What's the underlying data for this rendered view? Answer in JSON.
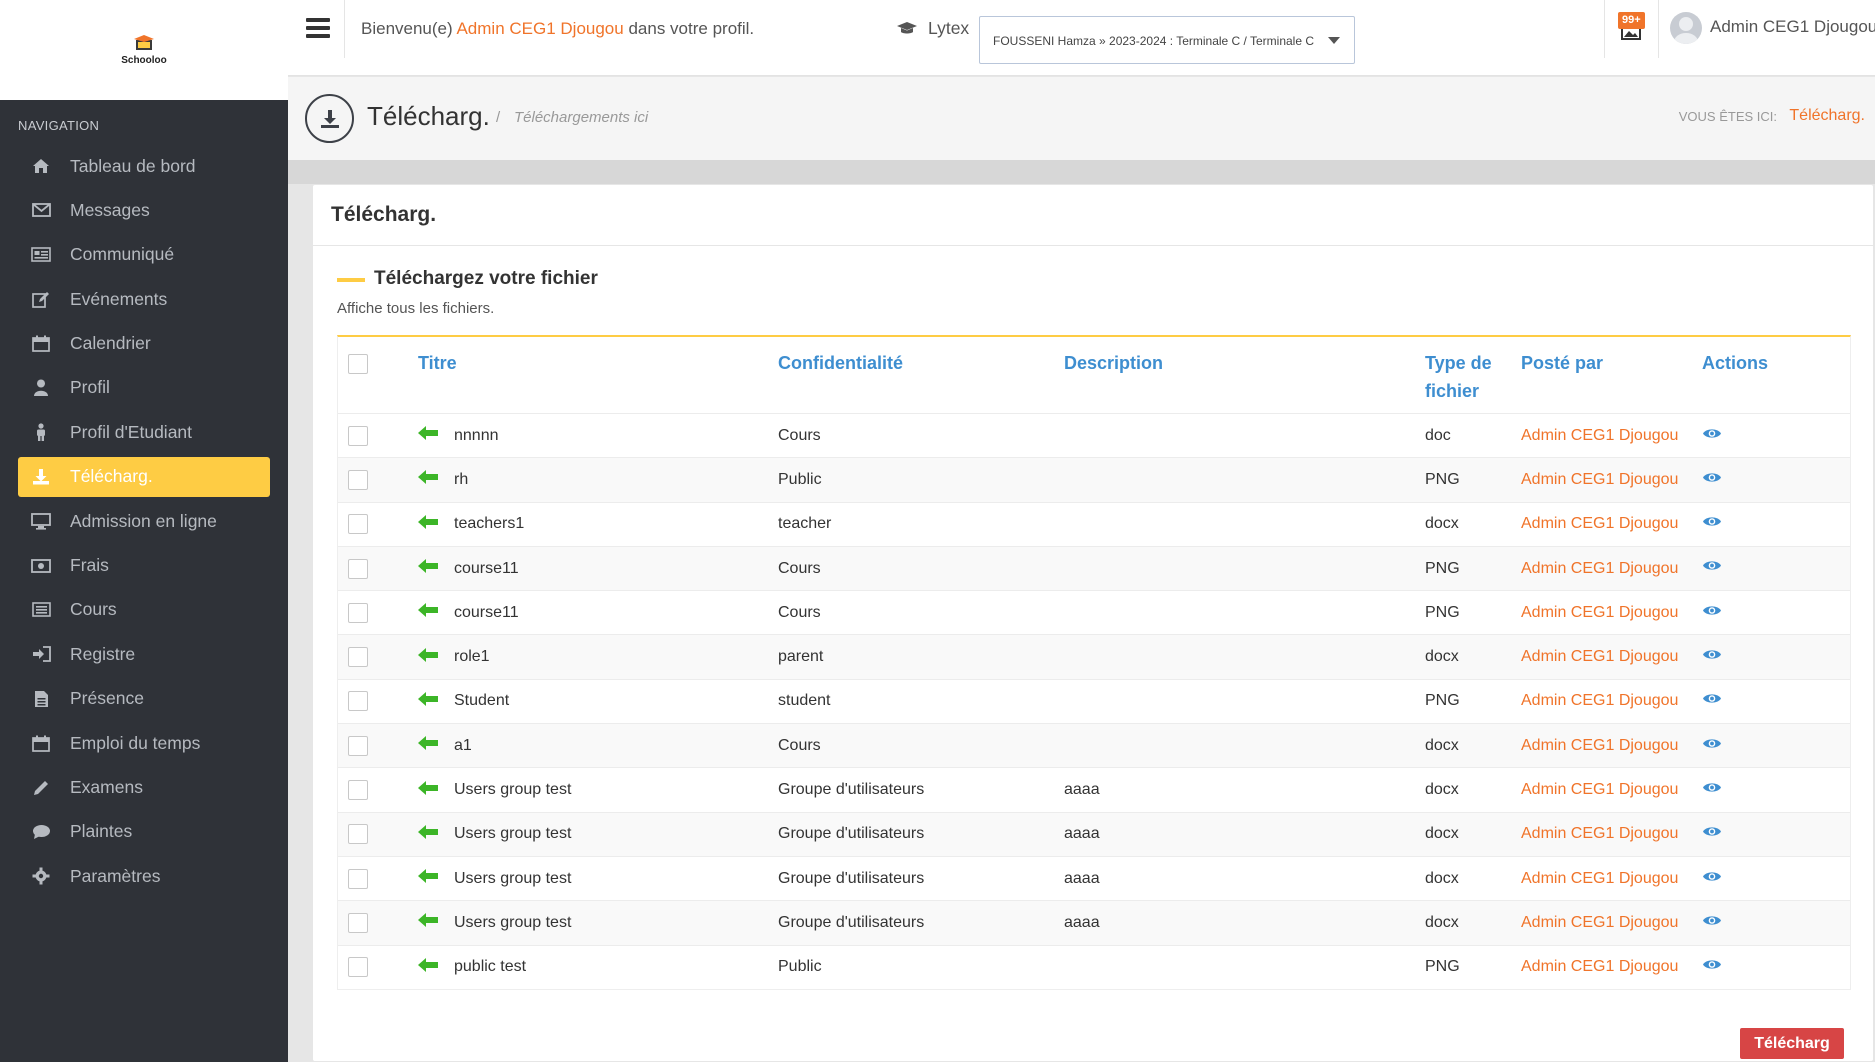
{
  "brand": {
    "name": "Schooloo"
  },
  "sidebar": {
    "title": "NAVIGATION",
    "items": [
      {
        "label": "Tableau de bord",
        "icon": "home-icon"
      },
      {
        "label": "Messages",
        "icon": "envelope-icon"
      },
      {
        "label": "Communiqué",
        "icon": "newspaper-icon"
      },
      {
        "label": "Evénements",
        "icon": "edit-icon"
      },
      {
        "label": "Calendrier",
        "icon": "calendar-icon"
      },
      {
        "label": "Profil",
        "icon": "user-icon"
      },
      {
        "label": "Profil d'Etudiant",
        "icon": "student-icon"
      },
      {
        "label": "Télécharg.",
        "icon": "download-icon",
        "active": true
      },
      {
        "label": "Admission en ligne",
        "icon": "monitor-icon"
      },
      {
        "label": "Frais",
        "icon": "money-icon"
      },
      {
        "label": "Cours",
        "icon": "list-icon"
      },
      {
        "label": "Registre",
        "icon": "sign-in-icon"
      },
      {
        "label": "Présence",
        "icon": "file-icon"
      },
      {
        "label": "Emploi du temps",
        "icon": "calendar-icon"
      },
      {
        "label": "Examens",
        "icon": "pencil-icon"
      },
      {
        "label": "Plaintes",
        "icon": "comment-icon"
      },
      {
        "label": "Paramètres",
        "icon": "gear-icon"
      }
    ]
  },
  "topbar": {
    "welcome_prefix": "Bienvenu(e)",
    "welcome_name": "Admin CEG1 Djougou",
    "welcome_suffix": "dans votre profil.",
    "school_label": "Lytex",
    "select_value": "FOUSSENI Hamza » 2023-2024 : Terminale C / Terminale C",
    "notif_badge": "99+",
    "user_name": "Admin CEG1 Djougou"
  },
  "page_header": {
    "title": "Télécharg.",
    "separator": "/",
    "subtitle": "Téléchargements ici",
    "you_are_here": "VOUS ÊTES ICI:",
    "breadcrumb": "Télécharg."
  },
  "card": {
    "title": "Télécharg.",
    "section_title": "Téléchargez votre fichier",
    "section_subtitle": "Affiche tous les fichiers.",
    "download_button": "Télécharg"
  },
  "table": {
    "headers": {
      "title": "Titre",
      "confidentiality": "Confidentialité",
      "description": "Description",
      "type_line1": "Type de",
      "type_line2": "fichier",
      "posted_by": "Posté par",
      "actions": "Actions"
    },
    "rows": [
      {
        "title": "nnnnn",
        "confidentiality": "Cours",
        "description": "",
        "type": "doc",
        "posted_by": "Admin CEG1 Djougou"
      },
      {
        "title": "rh",
        "confidentiality": "Public",
        "description": "",
        "type": "PNG",
        "posted_by": "Admin CEG1 Djougou"
      },
      {
        "title": "teachers1",
        "confidentiality": "teacher",
        "description": "",
        "type": "docx",
        "posted_by": "Admin CEG1 Djougou"
      },
      {
        "title": "course11",
        "confidentiality": "Cours",
        "description": "",
        "type": "PNG",
        "posted_by": "Admin CEG1 Djougou"
      },
      {
        "title": "course11",
        "confidentiality": "Cours",
        "description": "",
        "type": "PNG",
        "posted_by": "Admin CEG1 Djougou"
      },
      {
        "title": "role1",
        "confidentiality": "parent",
        "description": "",
        "type": "docx",
        "posted_by": "Admin CEG1 Djougou"
      },
      {
        "title": "Student",
        "confidentiality": "student",
        "description": "",
        "type": "PNG",
        "posted_by": "Admin CEG1 Djougou"
      },
      {
        "title": "a1",
        "confidentiality": "Cours",
        "description": "",
        "type": "docx",
        "posted_by": "Admin CEG1 Djougou"
      },
      {
        "title": "Users group test",
        "confidentiality": "Groupe d'utilisateurs",
        "description": "aaaa",
        "type": "docx",
        "posted_by": "Admin CEG1 Djougou"
      },
      {
        "title": "Users group test",
        "confidentiality": "Groupe d'utilisateurs",
        "description": "aaaa",
        "type": "docx",
        "posted_by": "Admin CEG1 Djougou"
      },
      {
        "title": "Users group test",
        "confidentiality": "Groupe d'utilisateurs",
        "description": "aaaa",
        "type": "docx",
        "posted_by": "Admin CEG1 Djougou"
      },
      {
        "title": "Users group test",
        "confidentiality": "Groupe d'utilisateurs",
        "description": "aaaa",
        "type": "docx",
        "posted_by": "Admin CEG1 Djougou"
      },
      {
        "title": "public test",
        "confidentiality": "Public",
        "description": "",
        "type": "PNG",
        "posted_by": "Admin CEG1 Djougou"
      }
    ]
  },
  "colors": {
    "accent": "#fecc44",
    "link": "#3e8ed0",
    "highlight": "#f0742a",
    "danger": "#d74545",
    "sidebar_bg": "#2f3238",
    "arrow": "#3cb527"
  }
}
